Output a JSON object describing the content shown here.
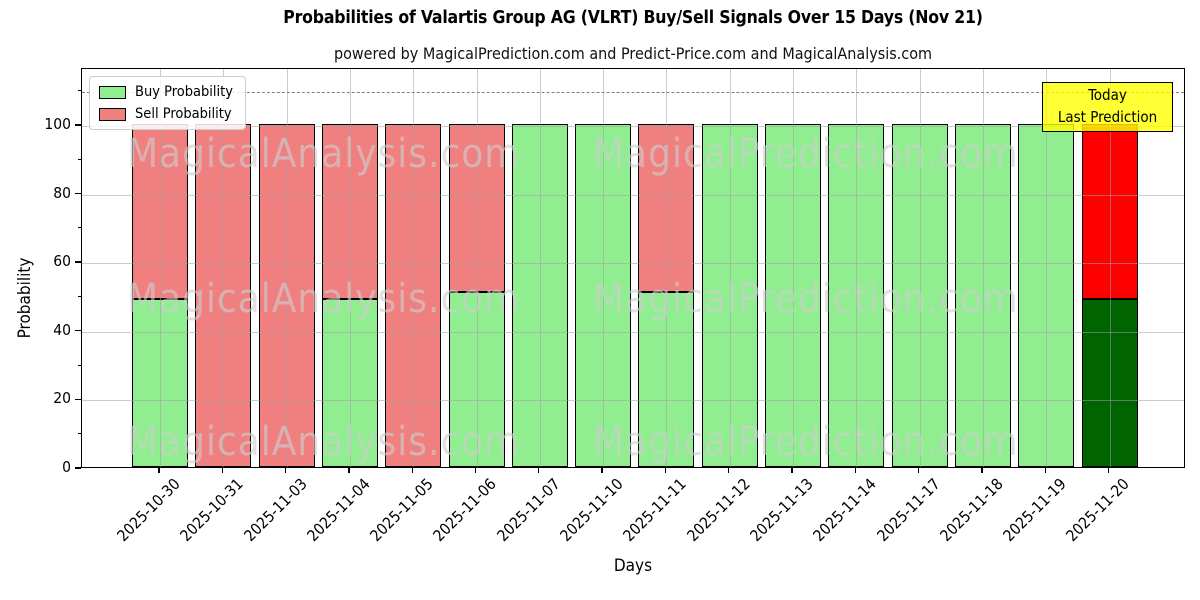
{
  "title": "Probabilities of Valartis Group AG (VLRT) Buy/Sell Signals Over 15 Days (Nov 21)",
  "subtitle": "powered by MagicalPrediction.com and Predict-Price.com and MagicalAnalysis.com",
  "legend": {
    "items": [
      {
        "label": "Buy Probability",
        "color": "#90EE90"
      },
      {
        "label": "Sell Probability",
        "color": "#F08080"
      }
    ]
  },
  "annotation": {
    "line1": "Today",
    "line2": "Last Prediction",
    "bg_color": "#FFFF00"
  },
  "watermarks": {
    "left": "MagicalAnalysis.com",
    "right": "MagicalPrediction.com"
  },
  "chart_data": {
    "type": "bar",
    "stacked": true,
    "title": "Probabilities of Valartis Group AG (VLRT) Buy/Sell Signals Over 15 Days (Nov 21)",
    "xlabel": "Days",
    "ylabel": "Probability",
    "categories": [
      "2025-10-30",
      "2025-10-31",
      "2025-11-03",
      "2025-11-04",
      "2025-11-05",
      "2025-11-06",
      "2025-11-07",
      "2025-11-10",
      "2025-11-11",
      "2025-11-12",
      "2025-11-13",
      "2025-11-14",
      "2025-11-17",
      "2025-11-18",
      "2025-11-19",
      "2025-11-20"
    ],
    "series": [
      {
        "name": "Buy Probability",
        "color": "#90EE90",
        "values": [
          49,
          0,
          0,
          49,
          0,
          51,
          100,
          100,
          51,
          100,
          100,
          100,
          100,
          100,
          100,
          49
        ]
      },
      {
        "name": "Sell Probability",
        "color": "#F08080",
        "values": [
          51,
          100,
          100,
          51,
          100,
          49,
          0,
          0,
          49,
          0,
          0,
          0,
          0,
          0,
          0,
          51
        ]
      }
    ],
    "today_index": 15,
    "today_colors": {
      "buy": "#006400",
      "sell": "#FF0000"
    },
    "bar_edge_color": "#000000",
    "yticks": [
      0,
      20,
      40,
      60,
      80,
      100
    ],
    "yticks_minor": [
      10,
      30,
      50,
      70,
      90,
      110
    ],
    "ylim": [
      0,
      116.6
    ],
    "threshold_line_y": 110,
    "grid": true,
    "legend_position": "upper left"
  }
}
